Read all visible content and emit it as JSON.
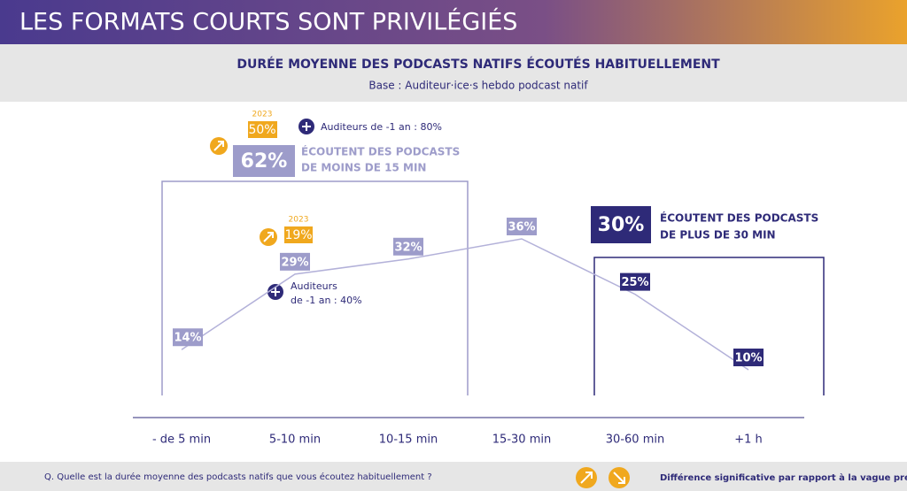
{
  "header": {
    "title": "LES FORMATS COURTS SONT PRIVILÉGIÉS"
  },
  "chart_data": {
    "type": "line",
    "title": "DURÉE MOYENNE DES PODCASTS NATIFS ÉCOUTÉS HABITUELLEMENT",
    "subtitle": "Base : Auditeur·ice·s hebdo podcast natif",
    "categories": [
      "- de 5 min",
      "5-10 min",
      "10-15 min",
      "15-30 min",
      "30-60 min",
      "+1 h"
    ],
    "values": [
      14,
      29,
      32,
      36,
      25,
      10
    ],
    "value_labels": [
      "14%",
      "29%",
      "32%",
      "36%",
      "25%",
      "10%"
    ],
    "color": "#b3b1d9",
    "point_colors": [
      "#9d9cca",
      "#9d9cca",
      "#9d9cca",
      "#9d9cca",
      "#2e2a78",
      "#2e2a78"
    ],
    "annotations": {
      "short": {
        "year": "2023",
        "previous": "50%",
        "plus_note": "Auditeurs de -1 an : 80%",
        "share": "62%",
        "text": [
          "ÉCOUTENT DES PODCASTS",
          "DE MOINS DE 15 MIN"
        ]
      },
      "point": {
        "year": "2023",
        "previous": "19%",
        "plus_note": [
          "Auditeurs",
          "de -1 an : 40%"
        ]
      },
      "long": {
        "share": "30%",
        "text": [
          "ÉCOUTENT DES PODCASTS",
          "DE PLUS DE 30 MIN"
        ]
      }
    }
  },
  "footer": {
    "question": "Q. Quelle est la durée moyenne des podcasts natifs que vous écoutez habituellement ?",
    "legend": "Différence significative par rapport à la vague précédente"
  }
}
